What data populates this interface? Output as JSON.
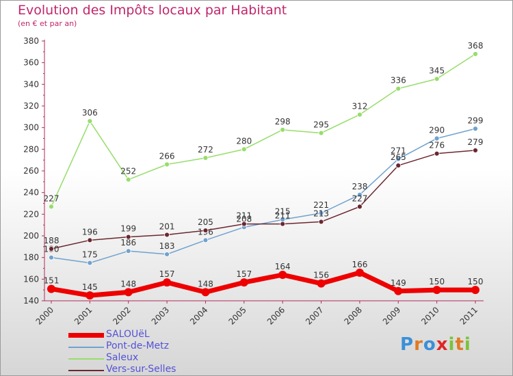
{
  "title": "Evolution des Impôts locaux par Habitant",
  "subtitle": "(en € et par an)",
  "logo": {
    "text": "Proxiti",
    "letters": [
      {
        "ch": "P",
        "color": "#3b8fd8"
      },
      {
        "ch": "r",
        "color": "#e07b22"
      },
      {
        "ch": "o",
        "color": "#3b8fd8"
      },
      {
        "ch": "x",
        "color": "#e02626"
      },
      {
        "ch": "i",
        "color": "#7cc23c"
      },
      {
        "ch": "t",
        "color": "#e07b22"
      },
      {
        "ch": "i",
        "color": "#7cc23c"
      }
    ]
  },
  "chart_data": {
    "type": "line",
    "x": [
      2000,
      2001,
      2002,
      2003,
      2004,
      2005,
      2006,
      2007,
      2008,
      2009,
      2010,
      2011
    ],
    "ylim": [
      140,
      380
    ],
    "yticks": [
      140,
      160,
      180,
      200,
      220,
      240,
      260,
      280,
      300,
      320,
      340,
      360,
      380
    ],
    "grid": false,
    "legend_position": "bottom-left",
    "series": [
      {
        "name": "SALOUëL",
        "color": "#ee0000",
        "values": [
          151,
          145,
          148,
          157,
          148,
          157,
          164,
          156,
          166,
          149,
          150,
          150
        ]
      },
      {
        "name": "Pont-de-Metz",
        "color": "#6fa2cf",
        "values": [
          180,
          175,
          186,
          183,
          196,
          208,
          215,
          221,
          238,
          271,
          290,
          299
        ]
      },
      {
        "name": "Saleux",
        "color": "#97dd6b",
        "values": [
          227,
          306,
          252,
          266,
          272,
          280,
          298,
          295,
          312,
          336,
          345,
          368
        ]
      },
      {
        "name": "Vers-sur-Selles",
        "color": "#6b2730",
        "values": [
          188,
          196,
          199,
          201,
          205,
          211,
          211,
          213,
          227,
          265,
          276,
          279
        ]
      }
    ]
  }
}
